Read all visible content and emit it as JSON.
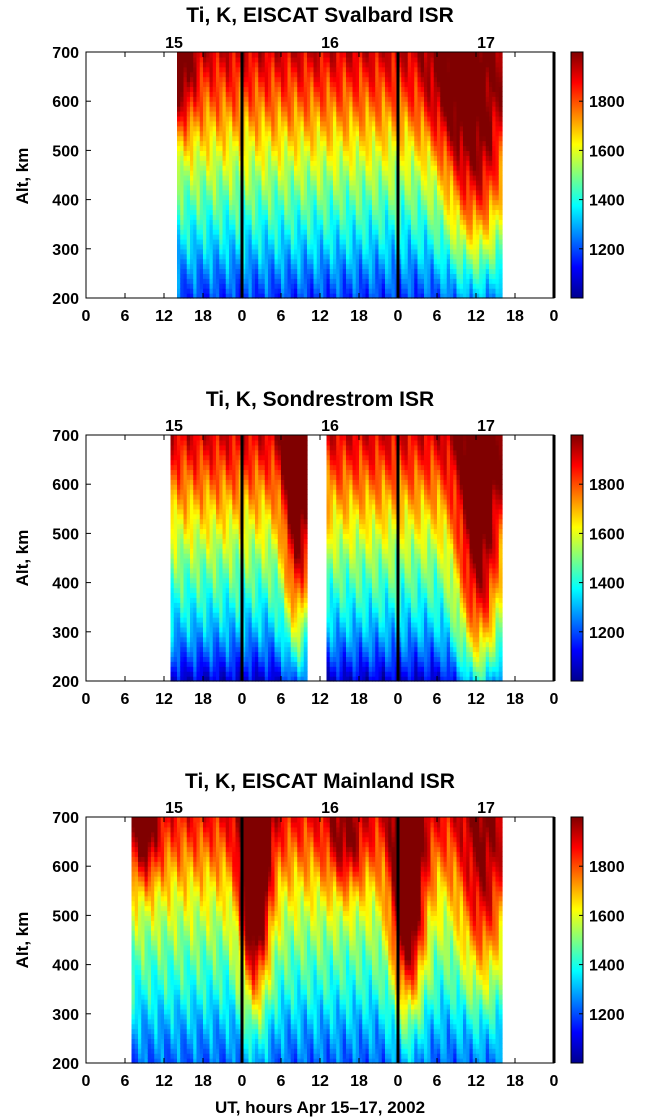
{
  "figure": {
    "xlabel": "UT, hours  Apr 15–17, 2002"
  },
  "chart_data": [
    {
      "type": "heatmap",
      "title": "Ti, K, EISCAT Svalbard ISR",
      "ylabel": "Alt, km",
      "xlabel": "",
      "xlim": [
        0,
        72
      ],
      "ylim": [
        200,
        700
      ],
      "x_ticks": [
        0,
        6,
        12,
        18,
        24,
        30,
        36,
        42,
        48,
        54,
        60,
        66,
        72
      ],
      "x_tick_labels": [
        "0",
        "6",
        "12",
        "18",
        "0",
        "6",
        "12",
        "18",
        "0",
        "6",
        "12",
        "18",
        "0"
      ],
      "y_ticks": [
        200,
        300,
        400,
        500,
        600,
        700
      ],
      "y_tick_labels": [
        "200",
        "300",
        "400",
        "500",
        "600",
        "700"
      ],
      "day_labels": [
        {
          "x": 12,
          "text": "15"
        },
        {
          "x": 36,
          "text": "16"
        },
        {
          "x": 60,
          "text": "17"
        }
      ],
      "day_boundaries": [
        24,
        48
      ],
      "data_intervals": [
        [
          14,
          64
        ]
      ],
      "colorbar": {
        "min": 1000,
        "max": 2000,
        "ticks": [
          1200,
          1400,
          1600,
          1800
        ],
        "tick_labels": [
          "1200",
          "1400",
          "1600",
          "1800"
        ],
        "colormap": "jet"
      },
      "profile": [
        {
          "alt": 200,
          "ti": 1180
        },
        {
          "alt": 250,
          "ti": 1250
        },
        {
          "alt": 300,
          "ti": 1330
        },
        {
          "alt": 350,
          "ti": 1400
        },
        {
          "alt": 400,
          "ti": 1470
        },
        {
          "alt": 450,
          "ti": 1540
        },
        {
          "alt": 500,
          "ti": 1620
        },
        {
          "alt": 550,
          "ti": 1700
        },
        {
          "alt": 600,
          "ti": 1780
        },
        {
          "alt": 650,
          "ti": 1850
        },
        {
          "alt": 700,
          "ti": 1920
        }
      ],
      "hot_spots": [
        {
          "x": 14.5,
          "alt": 650,
          "dti": 200,
          "sx": 1.5,
          "salt": 80
        },
        {
          "x": 60,
          "alt": 450,
          "dti": 380,
          "sx": 3.5,
          "salt": 160
        },
        {
          "x": 56,
          "alt": 620,
          "dti": 150,
          "sx": 3,
          "salt": 90
        }
      ]
    },
    {
      "type": "heatmap",
      "title": "Ti, K, Sondrestrom ISR",
      "ylabel": "Alt, km",
      "xlabel": "",
      "xlim": [
        0,
        72
      ],
      "ylim": [
        200,
        700
      ],
      "x_ticks": [
        0,
        6,
        12,
        18,
        24,
        30,
        36,
        42,
        48,
        54,
        60,
        66,
        72
      ],
      "x_tick_labels": [
        "0",
        "6",
        "12",
        "18",
        "0",
        "6",
        "12",
        "18",
        "0",
        "6",
        "12",
        "18",
        "0"
      ],
      "y_ticks": [
        200,
        300,
        400,
        500,
        600,
        700
      ],
      "y_tick_labels": [
        "200",
        "300",
        "400",
        "500",
        "600",
        "700"
      ],
      "day_labels": [
        {
          "x": 12,
          "text": "15"
        },
        {
          "x": 36,
          "text": "16"
        },
        {
          "x": 60,
          "text": "17"
        }
      ],
      "day_boundaries": [
        24,
        48
      ],
      "data_intervals": [
        [
          13,
          34
        ],
        [
          37,
          64
        ]
      ],
      "colorbar": {
        "min": 1000,
        "max": 2000,
        "ticks": [
          1200,
          1400,
          1600,
          1800
        ],
        "tick_labels": [
          "1200",
          "1400",
          "1600",
          "1800"
        ],
        "colormap": "jet"
      },
      "profile": [
        {
          "alt": 200,
          "ti": 1080
        },
        {
          "alt": 250,
          "ti": 1200
        },
        {
          "alt": 300,
          "ti": 1300
        },
        {
          "alt": 350,
          "ti": 1380
        },
        {
          "alt": 400,
          "ti": 1450
        },
        {
          "alt": 450,
          "ti": 1520
        },
        {
          "alt": 500,
          "ti": 1600
        },
        {
          "alt": 550,
          "ti": 1680
        },
        {
          "alt": 600,
          "ti": 1760
        },
        {
          "alt": 650,
          "ti": 1840
        },
        {
          "alt": 700,
          "ti": 1910
        }
      ],
      "hot_spots": [
        {
          "x": 32.5,
          "alt": 520,
          "dti": 450,
          "sx": 1.5,
          "salt": 220
        },
        {
          "x": 60.5,
          "alt": 430,
          "dti": 500,
          "sx": 2.5,
          "salt": 230
        }
      ]
    },
    {
      "type": "heatmap",
      "title": "Ti, K, EISCAT Mainland ISR",
      "ylabel": "Alt, km",
      "xlabel": "UT, hours  Apr 15–17, 2002",
      "xlim": [
        0,
        72
      ],
      "ylim": [
        200,
        700
      ],
      "x_ticks": [
        0,
        6,
        12,
        18,
        24,
        30,
        36,
        42,
        48,
        54,
        60,
        66,
        72
      ],
      "x_tick_labels": [
        "0",
        "6",
        "12",
        "18",
        "0",
        "6",
        "12",
        "18",
        "0",
        "6",
        "12",
        "18",
        "0"
      ],
      "y_ticks": [
        200,
        300,
        400,
        500,
        600,
        700
      ],
      "y_tick_labels": [
        "200",
        "300",
        "400",
        "500",
        "600",
        "700"
      ],
      "day_labels": [
        {
          "x": 12,
          "text": "15"
        },
        {
          "x": 36,
          "text": "16"
        },
        {
          "x": 60,
          "text": "17"
        }
      ],
      "day_boundaries": [
        24,
        48
      ],
      "data_intervals": [
        [
          7,
          64
        ]
      ],
      "colorbar": {
        "min": 1000,
        "max": 2000,
        "ticks": [
          1200,
          1400,
          1600,
          1800
        ],
        "tick_labels": [
          "1200",
          "1400",
          "1600",
          "1800"
        ],
        "colormap": "jet"
      },
      "profile": [
        {
          "alt": 200,
          "ti": 1220
        },
        {
          "alt": 250,
          "ti": 1270
        },
        {
          "alt": 300,
          "ti": 1330
        },
        {
          "alt": 350,
          "ti": 1400
        },
        {
          "alt": 400,
          "ti": 1450
        },
        {
          "alt": 450,
          "ti": 1510
        },
        {
          "alt": 500,
          "ti": 1570
        },
        {
          "alt": 550,
          "ti": 1640
        },
        {
          "alt": 600,
          "ti": 1720
        },
        {
          "alt": 650,
          "ti": 1800
        },
        {
          "alt": 700,
          "ti": 1870
        }
      ],
      "hot_spots": [
        {
          "x": 26,
          "alt": 560,
          "dti": 650,
          "sx": 1.6,
          "salt": 180
        },
        {
          "x": 49.5,
          "alt": 520,
          "dti": 620,
          "sx": 1.8,
          "salt": 160
        },
        {
          "x": 61,
          "alt": 520,
          "dti": 300,
          "sx": 2.5,
          "salt": 150
        },
        {
          "x": 9,
          "alt": 660,
          "dti": 250,
          "sx": 1.5,
          "salt": 70
        },
        {
          "x": 40,
          "alt": 640,
          "dti": 200,
          "sx": 2,
          "salt": 70
        }
      ]
    }
  ]
}
